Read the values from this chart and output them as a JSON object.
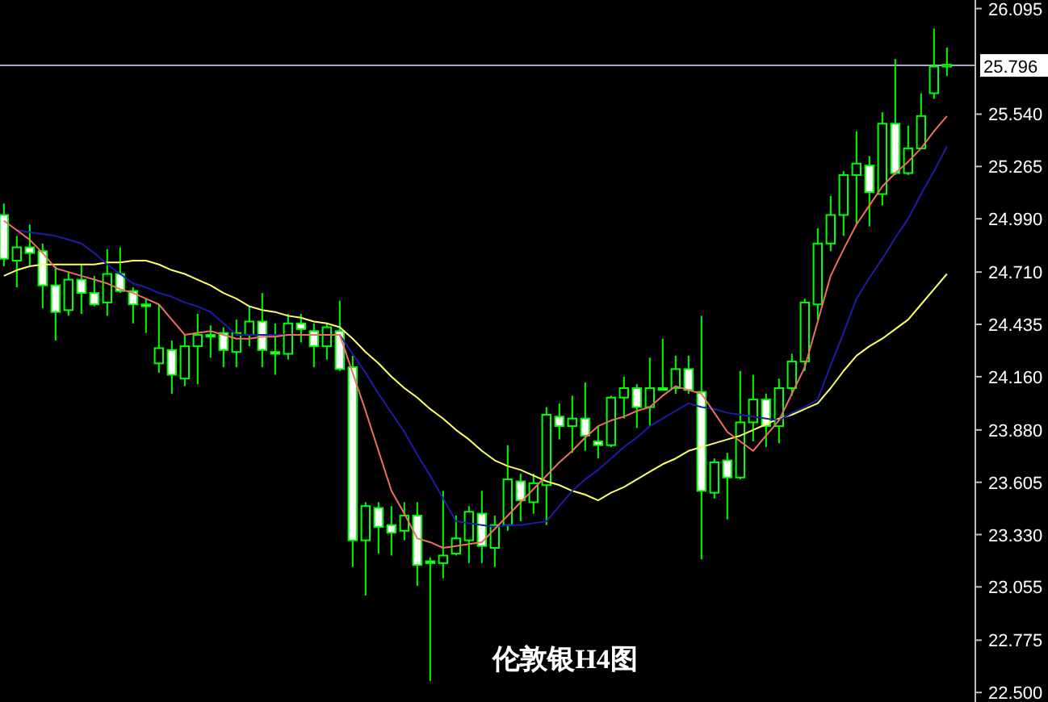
{
  "chart_data": {
    "type": "candlestick",
    "title": "伦敦银H4图",
    "color": "#00ff00",
    "grid": false,
    "tick_labels": "y",
    "categories": [
      null,
      null,
      null,
      null,
      null,
      null,
      null,
      null,
      null,
      null,
      null,
      null,
      null,
      null,
      null,
      null,
      null,
      null,
      null,
      null,
      null,
      null,
      null,
      null,
      null,
      null,
      null,
      null,
      null,
      null,
      null,
      null,
      null,
      null,
      null,
      null,
      null,
      null,
      null,
      null,
      null,
      null,
      null,
      null,
      null,
      null,
      null,
      null,
      null,
      null,
      null,
      null,
      null,
      null,
      null,
      null,
      null,
      null,
      null,
      null,
      null,
      null,
      null,
      null,
      null,
      null,
      null,
      null,
      null,
      null,
      null,
      null,
      null,
      null
    ],
    "ohlc": [
      [
        25.01,
        25.07,
        24.74,
        24.78
      ],
      [
        24.77,
        24.9,
        24.63,
        24.84
      ],
      [
        24.84,
        24.96,
        24.74,
        24.81
      ],
      [
        24.82,
        24.86,
        24.52,
        24.64
      ],
      [
        24.64,
        24.74,
        24.35,
        24.5
      ],
      [
        24.51,
        24.71,
        24.48,
        24.67
      ],
      [
        24.67,
        24.75,
        24.49,
        24.6
      ],
      [
        24.6,
        24.69,
        24.53,
        24.54
      ],
      [
        24.55,
        24.83,
        24.48,
        24.7
      ],
      [
        24.7,
        24.84,
        24.6,
        24.61
      ],
      [
        24.61,
        24.63,
        24.44,
        24.54
      ],
      [
        24.54,
        24.57,
        24.39,
        24.53
      ],
      [
        24.23,
        24.54,
        24.18,
        24.31
      ],
      [
        24.3,
        24.35,
        24.07,
        24.17
      ],
      [
        24.15,
        24.38,
        24.11,
        24.32
      ],
      [
        24.32,
        24.49,
        24.12,
        24.38
      ],
      [
        24.38,
        24.43,
        24.26,
        24.37
      ],
      [
        24.39,
        24.42,
        24.21,
        24.3
      ],
      [
        24.29,
        24.46,
        24.21,
        24.39
      ],
      [
        24.38,
        24.53,
        24.32,
        24.45
      ],
      [
        24.45,
        24.6,
        24.21,
        24.3
      ],
      [
        24.29,
        24.44,
        24.17,
        24.28
      ],
      [
        24.28,
        24.49,
        24.25,
        24.44
      ],
      [
        24.44,
        24.49,
        24.34,
        24.41
      ],
      [
        24.4,
        24.44,
        24.21,
        24.32
      ],
      [
        24.32,
        24.44,
        24.25,
        24.42
      ],
      [
        24.4,
        24.56,
        24.19,
        24.2
      ],
      [
        24.21,
        24.27,
        23.16,
        23.3
      ],
      [
        23.3,
        23.5,
        23.01,
        23.48
      ],
      [
        23.47,
        23.5,
        23.23,
        23.37
      ],
      [
        23.38,
        23.48,
        23.22,
        23.34
      ],
      [
        23.35,
        23.5,
        23.3,
        23.43
      ],
      [
        23.43,
        23.5,
        23.06,
        23.17
      ],
      [
        23.19,
        23.21,
        22.56,
        23.18
      ],
      [
        23.18,
        23.56,
        23.1,
        23.22
      ],
      [
        23.23,
        23.43,
        23.22,
        23.31
      ],
      [
        23.3,
        23.48,
        23.18,
        23.45
      ],
      [
        23.44,
        23.56,
        23.18,
        23.27
      ],
      [
        23.26,
        23.43,
        23.16,
        23.38
      ],
      [
        23.38,
        23.8,
        23.35,
        23.62
      ],
      [
        23.61,
        23.65,
        23.4,
        23.51
      ],
      [
        23.5,
        23.65,
        23.44,
        23.6
      ],
      [
        23.59,
        24.0,
        23.38,
        23.96
      ],
      [
        23.95,
        24.02,
        23.83,
        23.9
      ],
      [
        23.9,
        24.06,
        23.76,
        23.94
      ],
      [
        23.94,
        24.13,
        23.77,
        23.85
      ],
      [
        23.82,
        23.9,
        23.73,
        23.8
      ],
      [
        23.8,
        24.06,
        23.79,
        24.05
      ],
      [
        24.05,
        24.16,
        23.94,
        24.1
      ],
      [
        24.1,
        24.12,
        23.89,
        24.0
      ],
      [
        24.0,
        24.26,
        23.9,
        24.1
      ],
      [
        24.1,
        24.36,
        24.09,
        24.09
      ],
      [
        24.1,
        24.27,
        24.07,
        24.2
      ],
      [
        24.2,
        24.27,
        24.07,
        24.09
      ],
      [
        24.08,
        24.48,
        23.2,
        23.56
      ],
      [
        23.55,
        23.73,
        23.52,
        23.71
      ],
      [
        23.72,
        23.76,
        23.41,
        23.63
      ],
      [
        23.63,
        24.19,
        23.62,
        23.92
      ],
      [
        23.92,
        24.17,
        23.82,
        24.04
      ],
      [
        24.04,
        24.07,
        23.79,
        23.9
      ],
      [
        23.9,
        24.15,
        23.81,
        24.1
      ],
      [
        24.1,
        24.28,
        24.06,
        24.24
      ],
      [
        24.24,
        24.57,
        24.19,
        24.55
      ],
      [
        24.54,
        24.94,
        24.46,
        24.86
      ],
      [
        24.86,
        25.11,
        24.82,
        25.01
      ],
      [
        25.01,
        25.24,
        24.9,
        25.22
      ],
      [
        25.22,
        25.45,
        24.96,
        25.28
      ],
      [
        25.27,
        25.32,
        24.95,
        25.13
      ],
      [
        25.12,
        25.55,
        25.06,
        25.49
      ],
      [
        25.49,
        25.83,
        25.22,
        25.23
      ],
      [
        25.23,
        25.48,
        25.22,
        25.36
      ],
      [
        25.36,
        25.65,
        25.36,
        25.53
      ],
      [
        25.65,
        25.99,
        25.62,
        25.79
      ],
      [
        25.79,
        25.89,
        25.74,
        25.8
      ]
    ],
    "series": [
      {
        "type": "line",
        "color": "#ffff66",
        "values": [
          24.69,
          24.72,
          24.74,
          24.75,
          24.75,
          24.75,
          24.75,
          24.75,
          24.76,
          24.76,
          24.77,
          24.77,
          24.75,
          24.72,
          24.7,
          24.67,
          24.64,
          24.6,
          24.57,
          24.53,
          24.51,
          24.5,
          24.48,
          24.47,
          24.45,
          24.44,
          24.42,
          24.36,
          24.29,
          24.23,
          24.16,
          24.1,
          24.05,
          23.99,
          23.94,
          23.88,
          23.83,
          23.77,
          23.72,
          23.69,
          23.67,
          23.64,
          23.61,
          23.59,
          23.56,
          23.54,
          23.51,
          23.55,
          23.58,
          23.62,
          23.66,
          23.7,
          23.73,
          23.77,
          23.79,
          23.81,
          23.83,
          23.85,
          23.88,
          23.91,
          23.94,
          23.96,
          23.99,
          24.02,
          24.1,
          24.19,
          24.27,
          24.32,
          24.36,
          24.41,
          24.46,
          24.54,
          24.62,
          24.7
        ]
      },
      {
        "type": "line",
        "color": "#1c1ca8",
        "values": [
          null,
          24.93,
          24.92,
          24.91,
          24.9,
          24.88,
          24.86,
          24.81,
          24.75,
          24.7,
          24.65,
          24.63,
          24.6,
          24.58,
          24.55,
          24.53,
          24.5,
          24.44,
          24.38,
          24.38,
          24.38,
          24.38,
          24.38,
          24.38,
          24.38,
          24.38,
          24.38,
          24.28,
          24.18,
          24.07,
          23.97,
          23.87,
          23.75,
          23.64,
          23.52,
          23.4,
          23.39,
          23.38,
          23.37,
          23.38,
          23.38,
          23.39,
          23.4,
          23.48,
          23.56,
          23.62,
          23.67,
          23.73,
          23.79,
          23.84,
          23.9,
          23.94,
          23.98,
          24.02,
          24.0,
          23.99,
          23.97,
          23.96,
          23.95,
          23.94,
          23.93,
          23.97,
          24.0,
          24.04,
          24.22,
          24.39,
          24.57,
          24.68,
          24.78,
          24.89,
          24.99,
          25.12,
          25.24,
          25.37
        ]
      },
      {
        "type": "line",
        "color": "#f07060",
        "values": [
          24.98,
          24.93,
          24.88,
          24.81,
          24.73,
          24.71,
          24.69,
          24.67,
          24.65,
          24.62,
          24.6,
          24.57,
          24.54,
          24.46,
          24.38,
          24.39,
          24.4,
          24.38,
          24.36,
          24.36,
          24.37,
          24.37,
          24.38,
          24.38,
          24.38,
          24.38,
          24.38,
          24.18,
          23.98,
          23.77,
          23.56,
          23.44,
          23.31,
          23.29,
          23.26,
          23.27,
          23.28,
          23.29,
          23.36,
          23.43,
          23.5,
          23.57,
          23.64,
          23.71,
          23.77,
          23.84,
          23.9,
          23.93,
          23.95,
          23.98,
          24.0,
          24.06,
          24.11,
          24.09,
          24.07,
          23.97,
          23.87,
          23.82,
          23.77,
          23.85,
          23.93,
          24.07,
          24.21,
          24.45,
          24.69,
          24.83,
          24.96,
          25.06,
          25.16,
          25.23,
          25.29,
          25.36,
          25.45,
          25.53
        ]
      }
    ],
    "ylim": [
      22.45,
      26.14
    ],
    "yticks": [
      26.095,
      {
        "value": 25.54,
        "label": "25.540"
      },
      25.265,
      {
        "value": 24.99,
        "label": "24.990"
      },
      {
        "value": 24.71,
        "label": "24.710"
      },
      24.435,
      {
        "value": 24.16,
        "label": "24.160"
      },
      {
        "value": 23.88,
        "label": "23.880"
      },
      23.605,
      {
        "value": 23.33,
        "label": "23.330"
      },
      23.055,
      22.775,
      {
        "value": 22.5,
        "label": "22.500"
      }
    ],
    "ref_lines": [
      {
        "axis": "y",
        "value": 25.796,
        "label": "25.796",
        "color": "#a8a8c0"
      }
    ]
  }
}
